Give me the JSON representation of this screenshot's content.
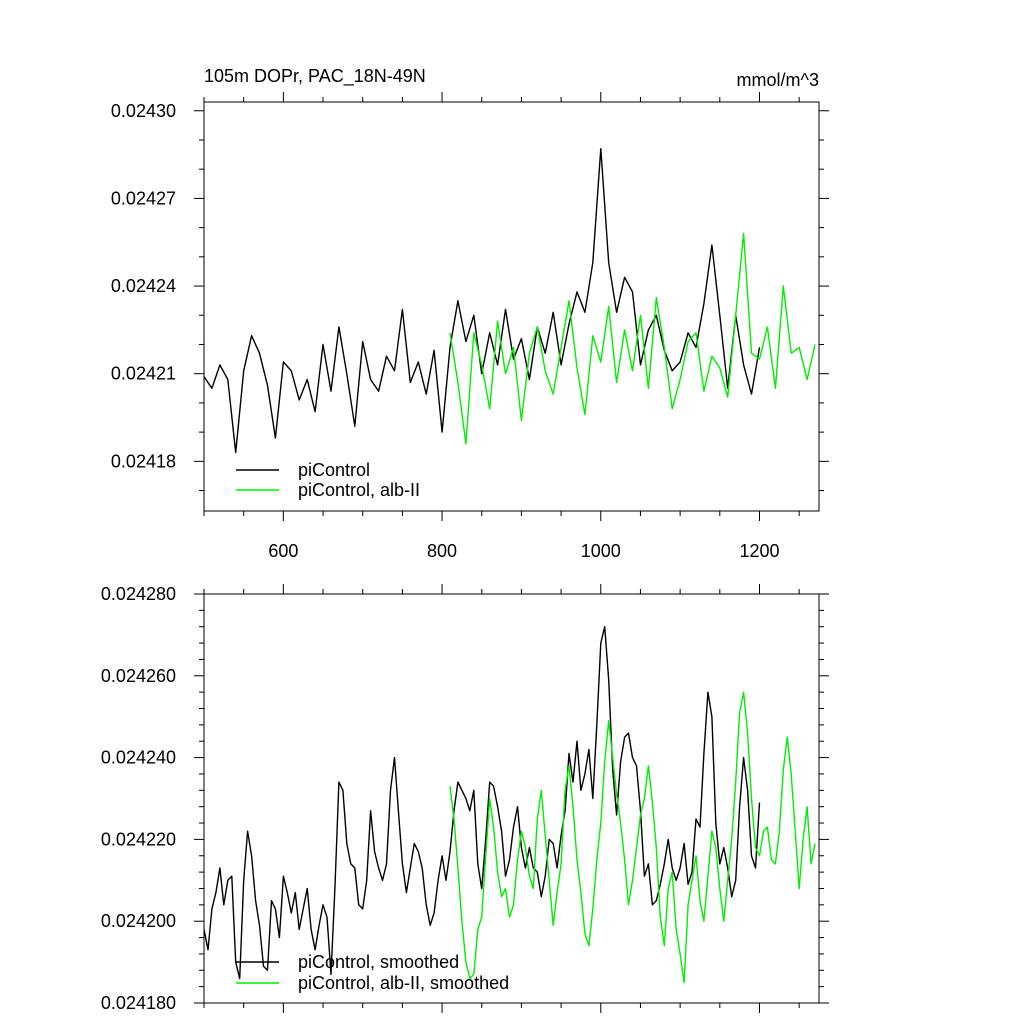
{
  "figure": {
    "title_left": "105m DOPr, PAC_18N-49N",
    "title_right": "mmol/m^3"
  },
  "colors": {
    "pictrl": "#000000",
    "alb": "#00ee00"
  },
  "chart_data": [
    {
      "type": "line",
      "title": "105m DOPr, PAC_18N-49N",
      "units": "mmol/m^3",
      "xlabel": "",
      "ylabel": "",
      "xlim": [
        500,
        1275
      ],
      "ylim": [
        0.024163,
        0.024303
      ],
      "xticks": [
        600,
        800,
        1000,
        1200
      ],
      "xtick_labels": [
        "600",
        "800",
        "1000",
        "1200"
      ],
      "xminor_step": 50,
      "yticks": [
        0.02418,
        0.02421,
        0.02424,
        0.02427,
        0.0243
      ],
      "ytick_labels": [
        "0.02418",
        "0.02421",
        "0.02424",
        "0.02427",
        "0.02430"
      ],
      "yminor_step": 1e-05,
      "legend_position": "bottom-left",
      "series": [
        {
          "name": "piControl",
          "color": "#000000",
          "x": [
            500,
            510,
            520,
            530,
            540,
            550,
            560,
            570,
            580,
            590,
            600,
            610,
            620,
            630,
            640,
            650,
            660,
            670,
            680,
            690,
            700,
            710,
            720,
            730,
            740,
            750,
            760,
            770,
            780,
            790,
            800,
            810,
            820,
            830,
            840,
            850,
            860,
            870,
            880,
            890,
            900,
            910,
            920,
            930,
            940,
            950,
            960,
            970,
            980,
            990,
            1000,
            1010,
            1020,
            1030,
            1040,
            1050,
            1060,
            1070,
            1080,
            1090,
            1100,
            1110,
            1120,
            1130,
            1140,
            1150,
            1160,
            1170,
            1180,
            1190,
            1200
          ],
          "y": [
            0.024209,
            0.024205,
            0.024213,
            0.024208,
            0.024183,
            0.024211,
            0.024223,
            0.024217,
            0.024206,
            0.024188,
            0.024214,
            0.024211,
            0.024201,
            0.024208,
            0.024197,
            0.02422,
            0.024204,
            0.024226,
            0.02421,
            0.024192,
            0.024221,
            0.024208,
            0.024204,
            0.024216,
            0.024211,
            0.024232,
            0.024207,
            0.024214,
            0.024203,
            0.024218,
            0.02419,
            0.024219,
            0.024235,
            0.024221,
            0.02423,
            0.02421,
            0.024224,
            0.024213,
            0.024232,
            0.024215,
            0.024222,
            0.024208,
            0.024226,
            0.024217,
            0.024231,
            0.024213,
            0.024227,
            0.024238,
            0.024231,
            0.024248,
            0.024287,
            0.024248,
            0.024231,
            0.024243,
            0.024238,
            0.024213,
            0.024225,
            0.02423,
            0.024218,
            0.024211,
            0.024214,
            0.024224,
            0.024219,
            0.024234,
            0.024254,
            0.02423,
            0.024205,
            0.02423,
            0.024213,
            0.024203,
            0.024219
          ]
        },
        {
          "name": "piControl, alb-II",
          "color": "#00ee00",
          "x": [
            810,
            820,
            830,
            840,
            850,
            860,
            870,
            880,
            890,
            900,
            910,
            920,
            930,
            940,
            950,
            960,
            970,
            980,
            990,
            1000,
            1010,
            1020,
            1030,
            1040,
            1050,
            1060,
            1070,
            1080,
            1090,
            1100,
            1110,
            1120,
            1130,
            1140,
            1150,
            1160,
            1170,
            1180,
            1190,
            1200,
            1210,
            1220,
            1230,
            1240,
            1250,
            1260,
            1270
          ],
          "y": [
            0.024224,
            0.024207,
            0.024186,
            0.024224,
            0.024213,
            0.024198,
            0.024228,
            0.02421,
            0.024219,
            0.024194,
            0.024217,
            0.024226,
            0.024211,
            0.024203,
            0.024219,
            0.024235,
            0.024212,
            0.024196,
            0.024223,
            0.024214,
            0.024233,
            0.024207,
            0.024225,
            0.024211,
            0.02423,
            0.024205,
            0.024236,
            0.024219,
            0.024198,
            0.024208,
            0.024221,
            0.024224,
            0.024204,
            0.024216,
            0.024212,
            0.024202,
            0.02423,
            0.024258,
            0.024217,
            0.024215,
            0.024226,
            0.024205,
            0.02424,
            0.024217,
            0.024219,
            0.024208,
            0.02422
          ]
        }
      ]
    },
    {
      "type": "line",
      "title": "",
      "xlabel": "",
      "ylabel": "",
      "xlim": [
        500,
        1275
      ],
      "ylim": [
        0.02418,
        0.02428
      ],
      "xticks": [
        600,
        800,
        1000,
        1200
      ],
      "xtick_labels": [],
      "xminor_step": 50,
      "yticks": [
        0.02418,
        0.0242,
        0.02422,
        0.02424,
        0.02426,
        0.02428
      ],
      "ytick_labels": [
        "0.024180",
        "0.024200",
        "0.024220",
        "0.024240",
        "0.024260",
        "0.024280"
      ],
      "yminor_step": 4e-06,
      "legend_position": "bottom-left",
      "series": [
        {
          "name": "piControl, smoothed",
          "color": "#000000",
          "x": [
            500,
            505,
            510,
            515,
            520,
            525,
            530,
            535,
            540,
            545,
            550,
            555,
            560,
            565,
            570,
            575,
            580,
            585,
            590,
            595,
            600,
            605,
            610,
            615,
            620,
            625,
            630,
            635,
            640,
            645,
            650,
            655,
            660,
            665,
            670,
            675,
            680,
            685,
            690,
            695,
            700,
            705,
            710,
            715,
            720,
            725,
            730,
            735,
            740,
            745,
            750,
            755,
            760,
            765,
            770,
            775,
            780,
            785,
            790,
            795,
            800,
            805,
            810,
            815,
            820,
            825,
            830,
            835,
            840,
            845,
            850,
            855,
            860,
            865,
            870,
            875,
            880,
            885,
            890,
            895,
            900,
            905,
            910,
            915,
            920,
            925,
            930,
            935,
            940,
            945,
            950,
            955,
            960,
            965,
            970,
            975,
            980,
            985,
            990,
            995,
            1000,
            1005,
            1010,
            1015,
            1020,
            1025,
            1030,
            1035,
            1040,
            1045,
            1050,
            1055,
            1060,
            1065,
            1070,
            1075,
            1080,
            1085,
            1090,
            1095,
            1100,
            1105,
            1110,
            1115,
            1120,
            1125,
            1130,
            1135,
            1140,
            1145,
            1150,
            1155,
            1160,
            1165,
            1170,
            1175,
            1180,
            1185,
            1190,
            1195,
            1200
          ],
          "y": [
            0.024198,
            0.024193,
            0.024203,
            0.024207,
            0.024213,
            0.024204,
            0.02421,
            0.024211,
            0.02419,
            0.024186,
            0.02421,
            0.024222,
            0.024216,
            0.024205,
            0.024199,
            0.024189,
            0.024188,
            0.024205,
            0.024203,
            0.024196,
            0.024211,
            0.024207,
            0.024202,
            0.024207,
            0.024198,
            0.024203,
            0.024208,
            0.024198,
            0.024193,
            0.024199,
            0.024204,
            0.024201,
            0.024187,
            0.024208,
            0.024234,
            0.024232,
            0.024219,
            0.024214,
            0.024213,
            0.024204,
            0.024203,
            0.02421,
            0.024227,
            0.024217,
            0.024213,
            0.02421,
            0.024214,
            0.024232,
            0.02424,
            0.024227,
            0.024214,
            0.024207,
            0.024213,
            0.024219,
            0.024217,
            0.024213,
            0.024204,
            0.024199,
            0.024202,
            0.02421,
            0.024216,
            0.02421,
            0.024217,
            0.024227,
            0.024234,
            0.024232,
            0.02423,
            0.024227,
            0.024232,
            0.024214,
            0.024208,
            0.02422,
            0.024234,
            0.024233,
            0.024228,
            0.024222,
            0.024211,
            0.024215,
            0.024223,
            0.024228,
            0.024218,
            0.024213,
            0.024218,
            0.024213,
            0.024212,
            0.024206,
            0.024211,
            0.02422,
            0.024219,
            0.024213,
            0.024221,
            0.024227,
            0.024241,
            0.024234,
            0.024244,
            0.024232,
            0.024236,
            0.024242,
            0.02423,
            0.024248,
            0.024268,
            0.024272,
            0.024259,
            0.024237,
            0.024226,
            0.024239,
            0.024245,
            0.024246,
            0.02424,
            0.024238,
            0.024227,
            0.024211,
            0.024214,
            0.024204,
            0.024205,
            0.024209,
            0.024214,
            0.02422,
            0.024213,
            0.02421,
            0.024213,
            0.024219,
            0.024209,
            0.024212,
            0.024225,
            0.024223,
            0.024241,
            0.024256,
            0.02425,
            0.024224,
            0.024214,
            0.024218,
            0.024213,
            0.024206,
            0.02421,
            0.024228,
            0.02424,
            0.024232,
            0.024216,
            0.024213,
            0.024229
          ]
        },
        {
          "name": "piControl, alb-II, smoothed",
          "color": "#00ee00",
          "x": [
            810,
            815,
            820,
            825,
            830,
            835,
            840,
            845,
            850,
            855,
            860,
            865,
            870,
            875,
            880,
            885,
            890,
            895,
            900,
            905,
            910,
            915,
            920,
            925,
            930,
            935,
            940,
            945,
            950,
            955,
            960,
            965,
            970,
            975,
            980,
            985,
            990,
            995,
            1000,
            1005,
            1010,
            1015,
            1020,
            1025,
            1030,
            1035,
            1040,
            1045,
            1050,
            1055,
            1060,
            1065,
            1070,
            1075,
            1080,
            1085,
            1090,
            1095,
            1100,
            1105,
            1110,
            1115,
            1120,
            1125,
            1130,
            1135,
            1140,
            1145,
            1150,
            1155,
            1160,
            1165,
            1170,
            1175,
            1180,
            1185,
            1190,
            1195,
            1200,
            1205,
            1210,
            1215,
            1220,
            1225,
            1230,
            1235,
            1240,
            1245,
            1250,
            1255,
            1260,
            1265,
            1270
          ],
          "y": [
            0.024233,
            0.024225,
            0.024213,
            0.0242,
            0.02419,
            0.024186,
            0.024187,
            0.024198,
            0.024201,
            0.024216,
            0.02423,
            0.024223,
            0.024212,
            0.024206,
            0.024208,
            0.024201,
            0.024204,
            0.024215,
            0.024222,
            0.024218,
            0.024211,
            0.024208,
            0.024225,
            0.024232,
            0.024221,
            0.02421,
            0.024199,
            0.024207,
            0.024214,
            0.024232,
            0.024238,
            0.024228,
            0.024215,
            0.024207,
            0.024197,
            0.024194,
            0.024203,
            0.024215,
            0.024224,
            0.024239,
            0.024249,
            0.02424,
            0.024231,
            0.024224,
            0.024215,
            0.024204,
            0.02421,
            0.024218,
            0.024226,
            0.02423,
            0.024238,
            0.024229,
            0.024218,
            0.024201,
            0.024194,
            0.024208,
            0.024212,
            0.024198,
            0.024192,
            0.024185,
            0.024204,
            0.02421,
            0.024216,
            0.024205,
            0.0242,
            0.024211,
            0.024222,
            0.024218,
            0.024208,
            0.0242,
            0.02421,
            0.02422,
            0.024234,
            0.024251,
            0.024256,
            0.024246,
            0.02423,
            0.024218,
            0.024216,
            0.024222,
            0.024223,
            0.024215,
            0.024214,
            0.024222,
            0.024237,
            0.024245,
            0.024236,
            0.024222,
            0.024208,
            0.02422,
            0.024228,
            0.024214,
            0.024219
          ]
        }
      ]
    }
  ]
}
